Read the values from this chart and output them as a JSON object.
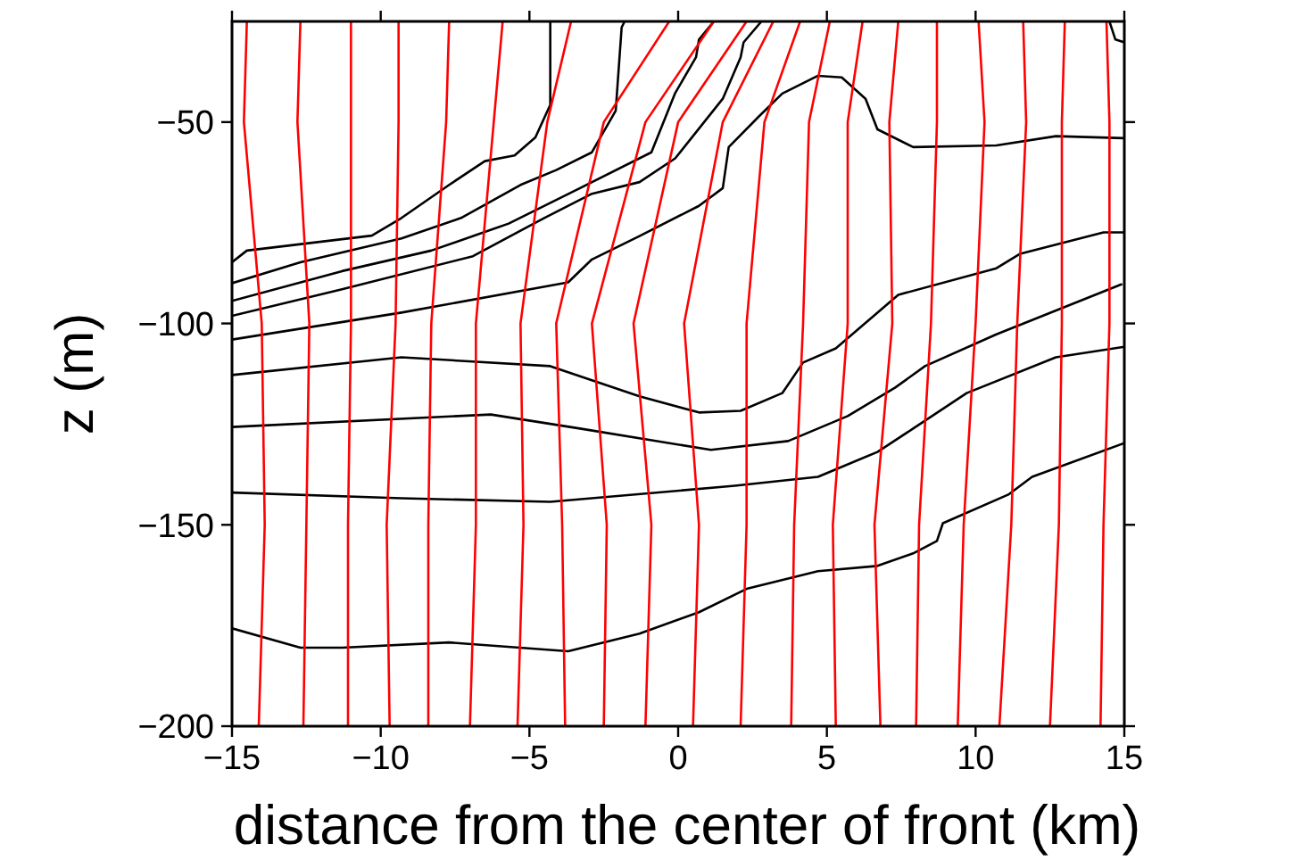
{
  "chart_data": {
    "type": "line",
    "xlabel": "distance from the center of front (km)",
    "ylabel": "z (m)",
    "xlim": [
      -15,
      15
    ],
    "ylim": [
      -200,
      -25
    ],
    "xticks": [
      -15,
      -10,
      -5,
      0,
      5,
      10,
      15
    ],
    "yticks": [
      -200,
      -150,
      -100,
      -50
    ],
    "grid": false,
    "series": [
      {
        "color": "#000000",
        "x": [
          -15,
          -12.7,
          -11.3,
          -7.7,
          -3.7,
          -1.3,
          0.7,
          2.3,
          4.7,
          6.7,
          7.9,
          8.7,
          8.9,
          11.1,
          11.9,
          15
        ],
        "values": [
          -175.7,
          -180.5,
          -180.5,
          -179.2,
          -181.4,
          -177,
          -171.7,
          -165.9,
          -161.5,
          -160.2,
          -157.1,
          -154,
          -149.6,
          -142.5,
          -138.1,
          -129.7
        ]
      },
      {
        "color": "#000000",
        "x": [
          -15,
          -9.3,
          -4.3,
          1.9,
          4.7,
          6.7,
          7.9,
          9.7,
          12.7,
          15
        ],
        "values": [
          -142,
          -143.4,
          -144.3,
          -140.3,
          -138.1,
          -131.9,
          -126.1,
          -117.3,
          -108.4,
          -105.8
        ]
      },
      {
        "color": "#000000",
        "x": [
          -15,
          -6.3,
          -3.3,
          1.1,
          3.7,
          5.7,
          7.3,
          8.3,
          10.7,
          14.9
        ],
        "values": [
          -125.7,
          -122.6,
          -126.1,
          -131.4,
          -129.2,
          -123,
          -115.9,
          -110.6,
          -102.7,
          -90.3
        ]
      },
      {
        "color": "#000000",
        "x": [
          -15,
          -9.3,
          -4.3,
          -1.3,
          0.7,
          2.1,
          3.5,
          4.2,
          5.3,
          7.4,
          10.7,
          11.5,
          14.3,
          15
        ],
        "values": [
          -112.8,
          -108.4,
          -110.6,
          -118.1,
          -122.1,
          -121.7,
          -117.3,
          -109.7,
          -106.2,
          -92.9,
          -86.3,
          -82.7,
          -77.4,
          -77.4
        ]
      },
      {
        "color": "#000000",
        "x": [
          -15,
          -9.3,
          -3.7,
          -2.9,
          -1.3,
          0.7,
          1.5,
          1.7,
          2.7,
          3.5,
          4.7,
          5.5,
          6.3,
          6.7,
          7.9,
          10.7,
          12.7,
          15
        ],
        "values": [
          -104,
          -97.3,
          -89.8,
          -84.1,
          -78.3,
          -70.8,
          -66.4,
          -56.2,
          -48.7,
          -42.9,
          -38.5,
          -38.9,
          -44.2,
          -51.8,
          -56.2,
          -55.8,
          -53.5,
          -54
        ]
      },
      {
        "color": "#000000",
        "x": [
          -15,
          -11.3,
          -6.9,
          -4.5,
          -2.9,
          -1.3,
          -0.1,
          1.5,
          2.1,
          2.2,
          2.8
        ],
        "values": [
          -98.1,
          -91.5,
          -83.3,
          -73.8,
          -67.8,
          -64.9,
          -59,
          -44.2,
          -33.9,
          -30.2,
          -25
        ]
      },
      {
        "color": "#000000",
        "x": [
          -15,
          -11.3,
          -8.3,
          -5.7,
          -3.3,
          -0.9,
          -0.1,
          0.6,
          0.7,
          1.2
        ],
        "values": [
          -94.4,
          -87,
          -81.9,
          -75.2,
          -66.4,
          -57.5,
          -42.8,
          -33.9,
          -29.5,
          -25
        ]
      },
      {
        "color": "#000000",
        "x": [
          -15,
          -12.7,
          -9.3,
          -7.3,
          -5.3,
          -4.1,
          -2.9,
          -2.1,
          -1.9,
          -1.8
        ],
        "values": [
          -90,
          -84.8,
          -78.9,
          -73.8,
          -65.6,
          -61.9,
          -57.5,
          -47.2,
          -26.5,
          -25
        ]
      },
      {
        "color": "#000000",
        "x": [
          -15,
          -14.5,
          -10.3,
          -9.3,
          -7.7,
          -6.5,
          -5.5,
          -4.8,
          -4.3,
          -4.3
        ],
        "values": [
          -84.8,
          -81.9,
          -78.2,
          -73.8,
          -65.6,
          -59.7,
          -58.3,
          -53.8,
          -45.7,
          -25
        ]
      },
      {
        "color": "#000000",
        "x": [
          14.5,
          14.7,
          15
        ],
        "values": [
          -25,
          -29.5,
          -30.2
        ]
      },
      {
        "color": "#ff0000",
        "x": [
          -14.5,
          -14.6,
          -14.0,
          -13.9,
          -14.1
        ],
        "values": [
          -25,
          -50,
          -100,
          -150,
          -200
        ]
      },
      {
        "color": "#ff0000",
        "x": [
          -12.7,
          -12.8,
          -12.4,
          -12.5,
          -12.6
        ],
        "values": [
          -25,
          -50,
          -100,
          -150,
          -200
        ]
      },
      {
        "color": "#ff0000",
        "x": [
          -11.0,
          -11.0,
          -11.0,
          -11.1,
          -11.1
        ],
        "values": [
          -25,
          -50,
          -100,
          -150,
          -200
        ]
      },
      {
        "color": "#ff0000",
        "x": [
          -9.4,
          -9.4,
          -9.5,
          -9.8,
          -9.7
        ],
        "values": [
          -25,
          -50,
          -100,
          -150,
          -200
        ]
      },
      {
        "color": "#ff0000",
        "x": [
          -7.7,
          -7.8,
          -8.3,
          -8.4,
          -8.4
        ],
        "values": [
          -25,
          -50,
          -100,
          -150,
          -200
        ]
      },
      {
        "color": "#ff0000",
        "x": [
          -5.9,
          -6.2,
          -6.8,
          -6.8,
          -7.0
        ],
        "values": [
          -25,
          -50,
          -100,
          -150,
          -200
        ]
      },
      {
        "color": "#ff0000",
        "x": [
          -3.6,
          -4.4,
          -5.3,
          -5.2,
          -5.4
        ],
        "values": [
          -25,
          -50,
          -100,
          -150,
          -200
        ]
      },
      {
        "color": "#ff0000",
        "x": [
          -0.3,
          -2.5,
          -4.1,
          -3.9,
          -3.8
        ],
        "values": [
          -25,
          -50,
          -100,
          -150,
          -200
        ]
      },
      {
        "color": "#ff0000",
        "x": [
          1.2,
          -1.1,
          -2.9,
          -2.4,
          -2.5
        ],
        "values": [
          -25,
          -50,
          -100,
          -150,
          -200
        ]
      },
      {
        "color": "#ff0000",
        "x": [
          2.3,
          0.0,
          -1.5,
          -0.9,
          -1.1
        ],
        "values": [
          -25,
          -50,
          -100,
          -150,
          -200
        ]
      },
      {
        "color": "#ff0000",
        "x": [
          3.2,
          1.5,
          0.2,
          0.7,
          0.5
        ],
        "values": [
          -25,
          -50,
          -100,
          -150,
          -200
        ]
      },
      {
        "color": "#ff0000",
        "x": [
          4.1,
          2.9,
          2.3,
          2.3,
          2.1
        ],
        "values": [
          -25,
          -50,
          -100,
          -150,
          -200
        ]
      },
      {
        "color": "#ff0000",
        "x": [
          5.1,
          4.4,
          4.2,
          3.9,
          3.8
        ],
        "values": [
          -25,
          -50,
          -100,
          -150,
          -200
        ]
      },
      {
        "color": "#ff0000",
        "x": [
          6.2,
          5.7,
          5.7,
          5.2,
          5.3
        ],
        "values": [
          -25,
          -50,
          -100,
          -150,
          -200
        ]
      },
      {
        "color": "#ff0000",
        "x": [
          7.4,
          7.1,
          7.2,
          6.6,
          6.8
        ],
        "values": [
          -25,
          -50,
          -100,
          -150,
          -200
        ]
      },
      {
        "color": "#ff0000",
        "x": [
          8.7,
          8.7,
          8.5,
          8.1,
          8.0
        ],
        "values": [
          -25,
          -50,
          -100,
          -150,
          -200
        ]
      },
      {
        "color": "#ff0000",
        "x": [
          10.1,
          10.3,
          10.0,
          9.6,
          9.4
        ],
        "values": [
          -25,
          -50,
          -100,
          -150,
          -200
        ]
      },
      {
        "color": "#ff0000",
        "x": [
          11.6,
          11.7,
          11.4,
          11.2,
          10.8
        ],
        "values": [
          -25,
          -50,
          -100,
          -150,
          -200
        ]
      },
      {
        "color": "#ff0000",
        "x": [
          13.0,
          12.9,
          12.9,
          12.8,
          12.5
        ],
        "values": [
          -25,
          -50,
          -100,
          -150,
          -200
        ]
      },
      {
        "color": "#ff0000",
        "x": [
          14.4,
          14.5,
          14.5,
          14.3,
          14.2
        ],
        "values": [
          -25,
          -50,
          -100,
          -150,
          -200
        ]
      }
    ]
  }
}
